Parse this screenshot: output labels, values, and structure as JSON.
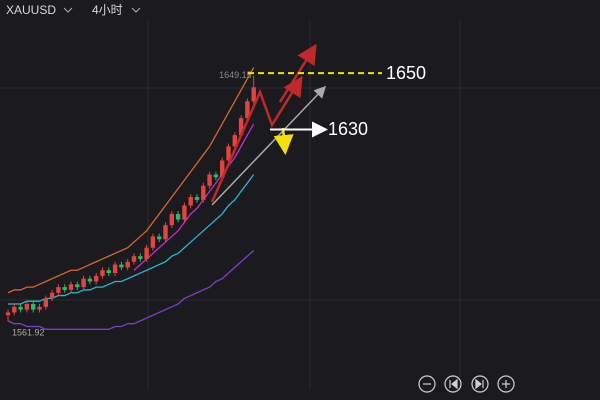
{
  "chart_data": {
    "type": "candlestick",
    "symbol": "XAUUSD",
    "timeframe": "4小时",
    "categories": [
      null,
      null,
      null,
      null,
      null,
      null,
      null,
      null,
      null,
      null,
      null,
      null,
      null,
      null,
      null,
      null,
      null,
      null,
      null,
      null,
      null,
      null,
      null,
      null,
      null,
      null,
      null,
      null,
      null,
      null,
      null,
      null,
      null,
      null,
      null,
      null,
      null,
      null,
      null,
      null
    ],
    "open": [
      1564,
      1565,
      1567,
      1566,
      1568,
      1566,
      1567,
      1570,
      1572,
      1574,
      1573,
      1575,
      1574,
      1577,
      1576,
      1578,
      1580,
      1579,
      1582,
      1581,
      1583,
      1585,
      1584,
      1588,
      1592,
      1591,
      1596,
      1600,
      1598,
      1603,
      1606,
      1605,
      1610,
      1614,
      1613,
      1619,
      1624,
      1628,
      1634,
      1640
    ],
    "high": [
      1566,
      1568,
      1568,
      1569,
      1569,
      1568,
      1571,
      1573,
      1575,
      1575,
      1576,
      1576,
      1578,
      1578,
      1579,
      1581,
      1581,
      1583,
      1583,
      1584,
      1586,
      1586,
      1589,
      1593,
      1593,
      1597,
      1601,
      1601,
      1604,
      1607,
      1607,
      1611,
      1615,
      1615,
      1620,
      1625,
      1629,
      1635,
      1641,
      1649.15
    ],
    "low": [
      1561.92,
      1564,
      1565,
      1565,
      1565,
      1565,
      1566,
      1569,
      1571,
      1572,
      1572,
      1573,
      1573,
      1575,
      1575,
      1577,
      1578,
      1578,
      1580,
      1580,
      1582,
      1583,
      1583,
      1587,
      1590,
      1590,
      1595,
      1597,
      1597,
      1602,
      1604,
      1604,
      1609,
      1612,
      1612,
      1618,
      1623,
      1627,
      1633,
      1639
    ],
    "close": [
      1565,
      1567,
      1566,
      1568,
      1566,
      1567,
      1570,
      1572,
      1574,
      1573,
      1575,
      1574,
      1577,
      1576,
      1578,
      1580,
      1579,
      1582,
      1581,
      1583,
      1585,
      1584,
      1588,
      1592,
      1591,
      1596,
      1600,
      1598,
      1603,
      1606,
      1605,
      1610,
      1614,
      1613,
      1619,
      1624,
      1628,
      1634,
      1640,
      1645
    ],
    "up_color": "#e0463f",
    "down_color": "#2fb86a",
    "lines": [
      {
        "color": "#d9652f",
        "values": [
          1572,
          1573,
          1573,
          1574,
          1574,
          1575,
          1576,
          1577,
          1578,
          1579,
          1580,
          1580,
          1581,
          1582,
          1583,
          1584,
          1585,
          1586,
          1587,
          1588,
          1590,
          1592,
          1594,
          1597,
          1600,
          1603,
          1606,
          1609,
          1612,
          1615,
          1618,
          1621,
          1624,
          1628,
          1632,
          1636,
          1640,
          1644,
          1648,
          1652
        ]
      },
      {
        "color": "#29b6d8",
        "values": [
          1568,
          1568,
          1568,
          1569,
          1569,
          1569,
          1570,
          1570,
          1571,
          1571,
          1572,
          1572,
          1573,
          1573,
          1574,
          1574,
          1575,
          1576,
          1576,
          1577,
          1578,
          1579,
          1580,
          1581,
          1582,
          1583,
          1585,
          1586,
          1588,
          1590,
          1592,
          1594,
          1596,
          1598,
          1600,
          1603,
          1605,
          1608,
          1611,
          1614
        ]
      },
      {
        "color": "#c02fc8",
        "values": [
          null,
          null,
          null,
          null,
          null,
          null,
          null,
          null,
          null,
          null,
          null,
          null,
          null,
          null,
          null,
          null,
          null,
          null,
          null,
          null,
          1580,
          1582,
          1584,
          1586,
          1588,
          1590,
          1592,
          1594,
          1597,
          1600,
          1602,
          1605,
          1608,
          1611,
          1614,
          1617,
          1620,
          1624,
          1628,
          1632
        ]
      },
      {
        "color": "#7b3fc8",
        "values": [
          1562,
          1561,
          1561,
          1560,
          1560,
          1560,
          1559,
          1559,
          1559,
          1559,
          1559,
          1559,
          1559,
          1559,
          1559,
          1559,
          1559,
          1560,
          1560,
          1561,
          1561,
          1562,
          1563,
          1564,
          1565,
          1566,
          1567,
          1568,
          1570,
          1571,
          1572,
          1573,
          1574,
          1576,
          1577,
          1579,
          1581,
          1583,
          1585,
          1587
        ]
      }
    ],
    "levels": [
      1650,
      1630
    ],
    "ylim": [
      1541,
      1676
    ]
  }
}
